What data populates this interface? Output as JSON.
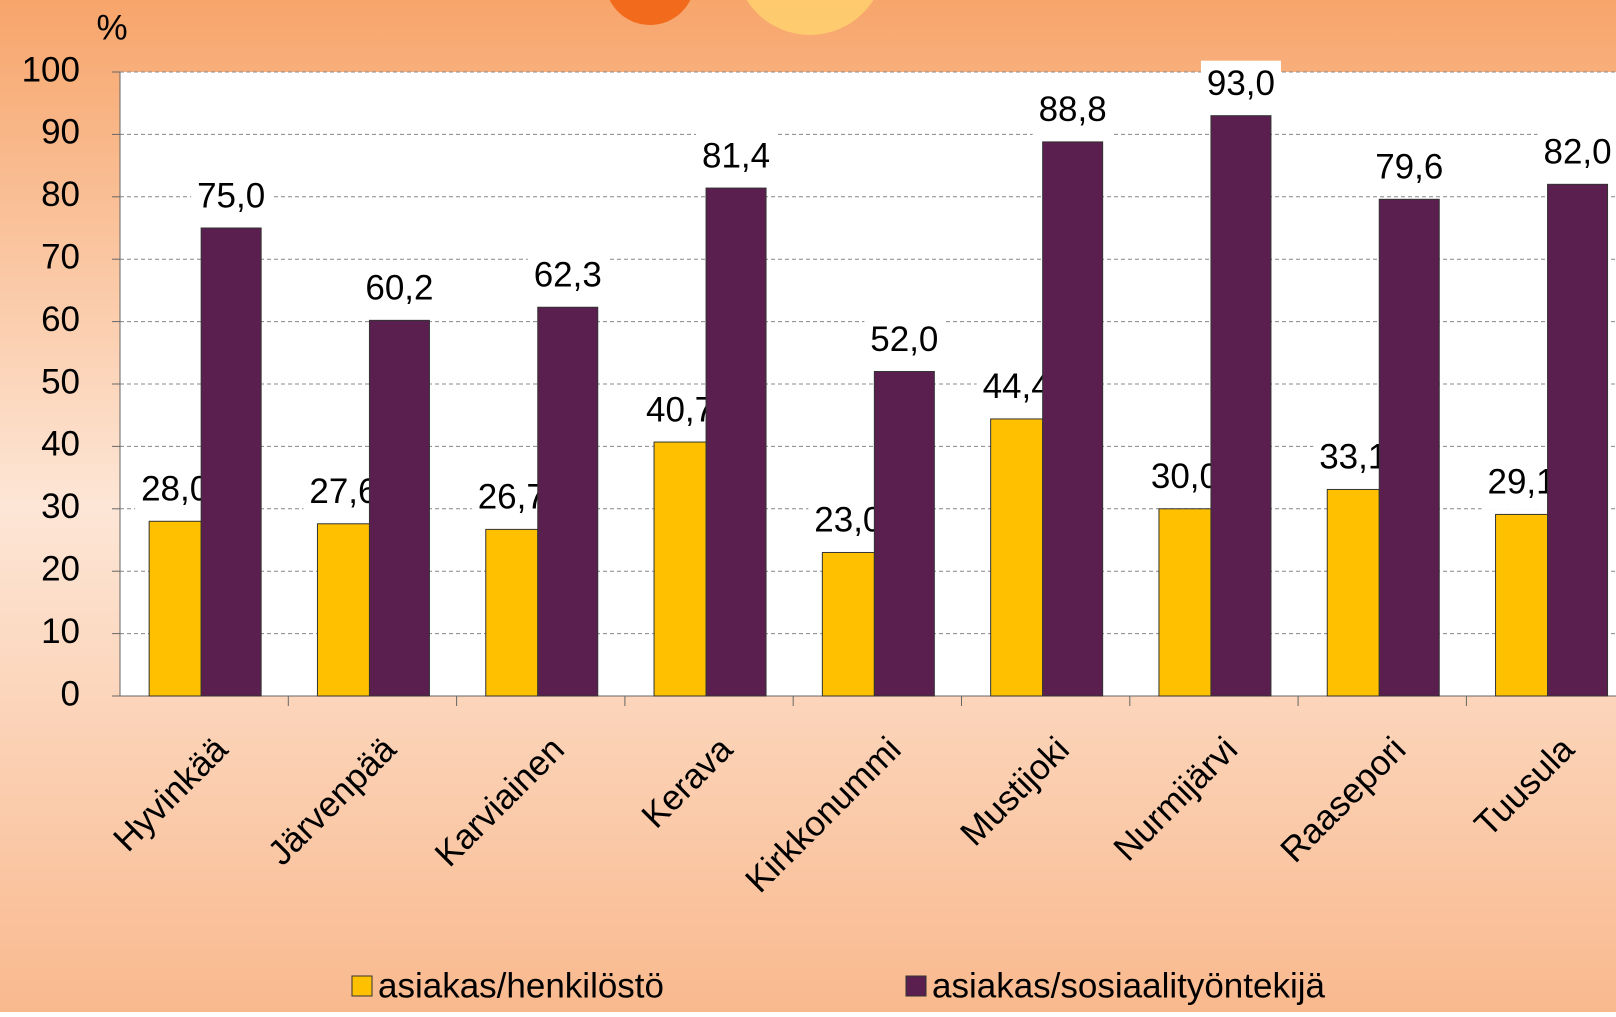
{
  "chart_data": {
    "type": "bar",
    "y_label": "%",
    "categories": [
      "Hyvinkää",
      "Järvenpää",
      "Karviainen",
      "Kerava",
      "Kirkkonummi",
      "Mustijoki",
      "Nurmijärvi",
      "Raasepori",
      "Tuusula"
    ],
    "series": [
      {
        "name": "asiakas/henkilöstö",
        "color": "#ffc000",
        "values": [
          28.0,
          27.6,
          26.7,
          40.7,
          23.0,
          44.4,
          30.0,
          33.1,
          29.1
        ],
        "value_labels": [
          "28,0",
          "27,6",
          "26,7",
          "40,7",
          "23,0",
          "44,4",
          "30,0",
          "33,1",
          "29,1"
        ]
      },
      {
        "name": "asiakas/sosiaalityöntekijä",
        "color": "#5a1f4e",
        "values": [
          75.0,
          60.2,
          62.3,
          81.4,
          52.0,
          88.8,
          93.0,
          79.6,
          82.0
        ],
        "value_labels": [
          "75,0",
          "60,2",
          "62,3",
          "81,4",
          "52,0",
          "88,8",
          "93,0",
          "79,6",
          "82,0"
        ]
      }
    ],
    "ylim": [
      0,
      100
    ],
    "yticks": [
      0,
      10,
      20,
      30,
      40,
      50,
      60,
      70,
      80,
      90,
      100
    ],
    "grid": true
  }
}
